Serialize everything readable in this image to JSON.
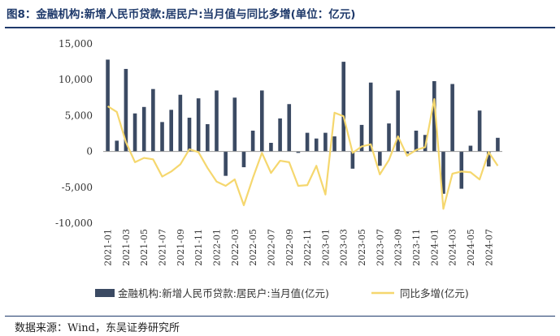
{
  "title": "图8：金融机构:新增人民币贷款:居民户:当月值与同比多增(单位：亿元)",
  "source": "数据来源：Wind，东吴证券研究所",
  "colors": {
    "bar": "#3b4a63",
    "line": "#f5d76e",
    "title": "#1f3a6b"
  },
  "chart_data": {
    "type": "bar+line",
    "categories": [
      "2021-01",
      "2021-02",
      "2021-03",
      "2021-04",
      "2021-05",
      "2021-06",
      "2021-07",
      "2021-08",
      "2021-09",
      "2021-10",
      "2021-11",
      "2021-12",
      "2022-01",
      "2022-02",
      "2022-03",
      "2022-04",
      "2022-05",
      "2022-06",
      "2022-07",
      "2022-08",
      "2022-09",
      "2022-10",
      "2022-11",
      "2022-12",
      "2023-01",
      "2023-02",
      "2023-03",
      "2023-04",
      "2023-05",
      "2023-06",
      "2023-07",
      "2023-08",
      "2023-09",
      "2023-10",
      "2023-11",
      "2023-12",
      "2024-01",
      "2024-02",
      "2024-03",
      "2024-04",
      "2024-05",
      "2024-06",
      "2024-07",
      "2024-08"
    ],
    "tick_labels": [
      "2021-01",
      "2021-03",
      "2021-05",
      "2021-07",
      "2021-09",
      "2021-11",
      "2022-01",
      "2022-03",
      "2022-05",
      "2022-07",
      "2022-09",
      "2022-11",
      "2023-01",
      "2023-03",
      "2023-05",
      "2023-07",
      "2023-09",
      "2023-11",
      "2024-01",
      "2024-03",
      "2024-05",
      "2024-07"
    ],
    "series": [
      {
        "name": "金融机构:新增人民币贷款:居民户:当月值(亿元)",
        "kind": "bar",
        "values": [
          12800,
          1500,
          11500,
          5300,
          6200,
          8700,
          4100,
          5800,
          7900,
          4700,
          7400,
          3800,
          8500,
          -3400,
          7500,
          -2200,
          2900,
          8500,
          1200,
          4600,
          6600,
          -200,
          2600,
          1800,
          2600,
          2100,
          12500,
          -2400,
          3700,
          9600,
          -2000,
          3900,
          8500,
          -300,
          2900,
          2300,
          9800,
          -5900,
          9400,
          -5200,
          800,
          5700,
          -2100,
          1900
        ]
      },
      {
        "name": "同比多增(亿元)",
        "kind": "line",
        "values": [
          6300,
          5500,
          1300,
          -1500,
          -900,
          -1100,
          -3500,
          -2800,
          -1800,
          300,
          -100,
          -2300,
          -4200,
          -4800,
          -3900,
          -7500,
          -3700,
          -200,
          -3000,
          -1300,
          -1500,
          -4800,
          -4700,
          -2000,
          -6000,
          5400,
          4900,
          -200,
          700,
          1000,
          -3200,
          -1200,
          2100,
          -600,
          200,
          600,
          7300,
          -8000,
          -3100,
          -2800,
          -2900,
          -3900,
          -100,
          -2000
        ]
      }
    ],
    "ylim": [
      -10000,
      15000
    ],
    "yticks": [
      -10000,
      -5000,
      0,
      5000,
      10000,
      15000
    ],
    "ytick_labels": [
      "-10,000",
      "-5,000",
      "0",
      "5,000",
      "10,000",
      "15,000"
    ],
    "legend_position": "bottom"
  }
}
